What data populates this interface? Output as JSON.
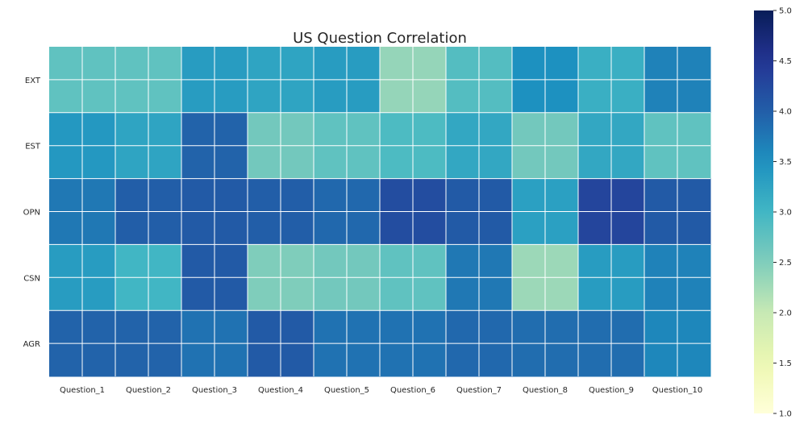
{
  "chart_data": {
    "type": "heatmap",
    "title": "US Question Correlation",
    "xlabel": "",
    "ylabel": "",
    "x_categories": [
      "Question_1",
      "Question_2",
      "Question_3",
      "Question_4",
      "Question_5",
      "Question_6",
      "Question_7",
      "Question_8",
      "Question_9",
      "Question_10"
    ],
    "y_categories": [
      "EXT",
      "EST",
      "OPN",
      "CSN",
      "AGR"
    ],
    "values": [
      [
        2.75,
        2.75,
        3.35,
        3.25,
        3.35,
        2.35,
        2.85,
        3.5,
        3.1,
        3.65
      ],
      [
        3.4,
        3.25,
        3.95,
        2.6,
        2.75,
        2.9,
        3.2,
        2.6,
        3.2,
        2.75
      ],
      [
        3.75,
        4.0,
        4.05,
        4.0,
        3.9,
        4.2,
        4.05,
        3.3,
        4.3,
        4.05
      ],
      [
        3.35,
        3.0,
        4.05,
        2.5,
        2.6,
        2.75,
        3.75,
        2.3,
        3.35,
        3.65
      ],
      [
        3.95,
        3.95,
        3.8,
        4.05,
        3.8,
        3.8,
        3.9,
        3.85,
        3.85,
        3.6
      ]
    ],
    "colorbar": {
      "min": 1.0,
      "max": 5.0,
      "ticks": [
        "1.0",
        "1.5",
        "2.0",
        "2.5",
        "3.0",
        "3.5",
        "4.0",
        "4.5",
        "5.0"
      ],
      "colormap": "YlGnBu"
    },
    "grid": true
  }
}
